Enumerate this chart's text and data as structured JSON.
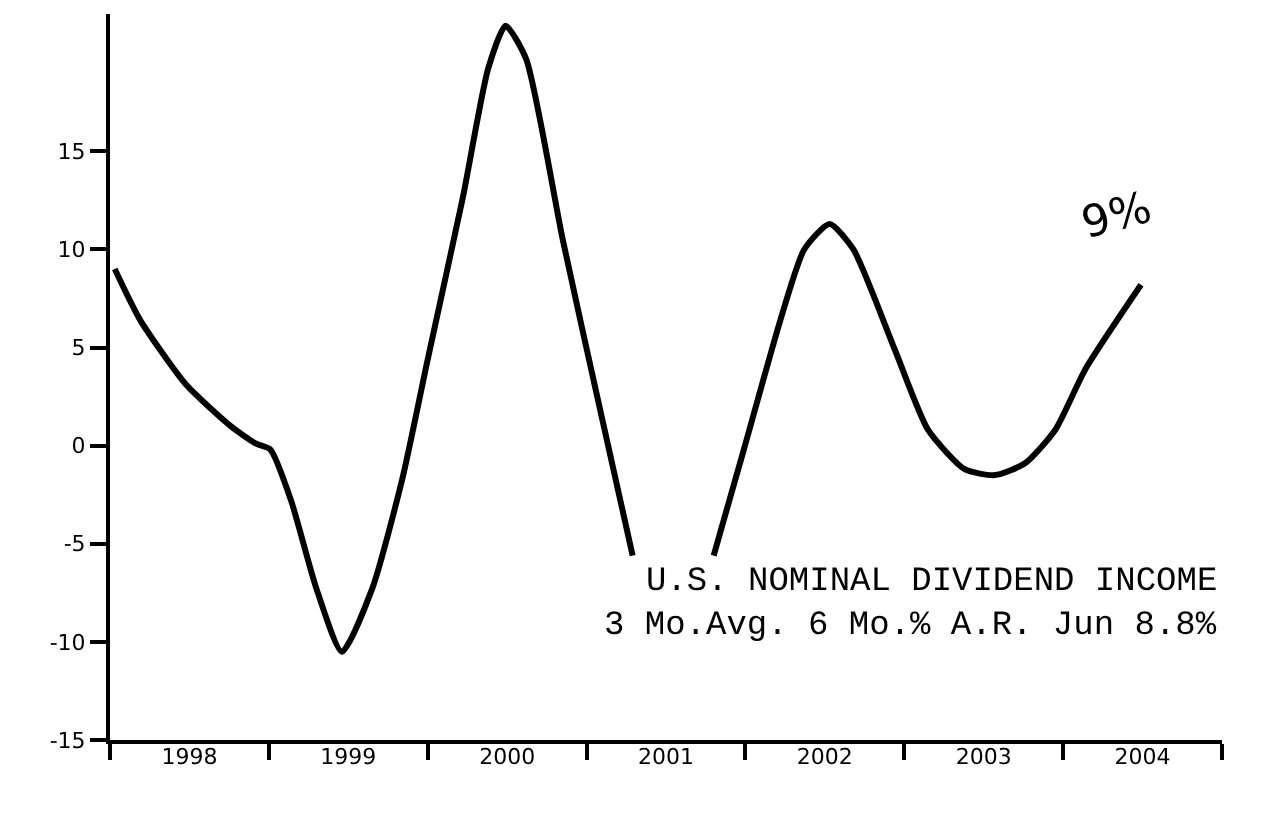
{
  "chart_data": {
    "type": "line",
    "title": "U.S. NOMINAL DIVIDEND INCOME",
    "subtitle": "3 Mo.Avg. 6 Mo.% A.R. Jun 8.8%",
    "x": [
      1998.03,
      1998.19,
      1998.48,
      1998.76,
      1998.92,
      1999.01,
      1999.14,
      1999.3,
      1999.46,
      1999.65,
      1999.84,
      2000.0,
      2000.22,
      2000.38,
      2000.49,
      2000.62,
      2000.85,
      2001.1,
      2001.29,
      2001.54,
      2001.8,
      2001.99,
      2002.22,
      2002.37,
      2002.53,
      2002.68,
      2002.94,
      2003.15,
      2003.38,
      2003.57,
      2003.76,
      2003.95,
      2004.14,
      2004.49
    ],
    "series": [
      {
        "color": "#000000",
        "values": [
          9.0,
          6.4,
          3.1,
          1.0,
          0.1,
          -0.2,
          -2.8,
          -7.3,
          -10.5,
          -7.3,
          -1.7,
          4.4,
          12.6,
          19.2,
          21.4,
          19.7,
          10.5,
          1.3,
          -5.6,
          null,
          -5.6,
          -0.2,
          6.4,
          10.0,
          11.3,
          10.0,
          4.9,
          0.8,
          -1.2,
          -1.5,
          -0.9,
          0.8,
          3.9,
          8.2
        ]
      }
    ],
    "xlim": [
      1998,
      2005
    ],
    "xticks": [
      {
        "value": 1998,
        "label": null
      },
      {
        "value": 1998.5,
        "label": "1998"
      },
      {
        "value": 1999,
        "label": null
      },
      {
        "value": 1999.5,
        "label": "1999"
      },
      {
        "value": 2000,
        "label": null
      },
      {
        "value": 2000.5,
        "label": "2000"
      },
      {
        "value": 2001,
        "label": null
      },
      {
        "value": 2001.5,
        "label": "2001"
      },
      {
        "value": 2002,
        "label": null
      },
      {
        "value": 2002.5,
        "label": "2002"
      },
      {
        "value": 2003,
        "label": null
      },
      {
        "value": 2003.5,
        "label": "2003"
      },
      {
        "value": 2004,
        "label": null
      },
      {
        "value": 2004.5,
        "label": "2004"
      },
      {
        "value": 2005,
        "label": null
      }
    ],
    "ylim": [
      -15,
      22
    ],
    "yticks": [
      -15,
      -10,
      -5,
      0,
      5,
      10,
      15
    ],
    "annotations": [
      "9%"
    ],
    "grid": false,
    "marker": "none",
    "line_style": "solid"
  }
}
